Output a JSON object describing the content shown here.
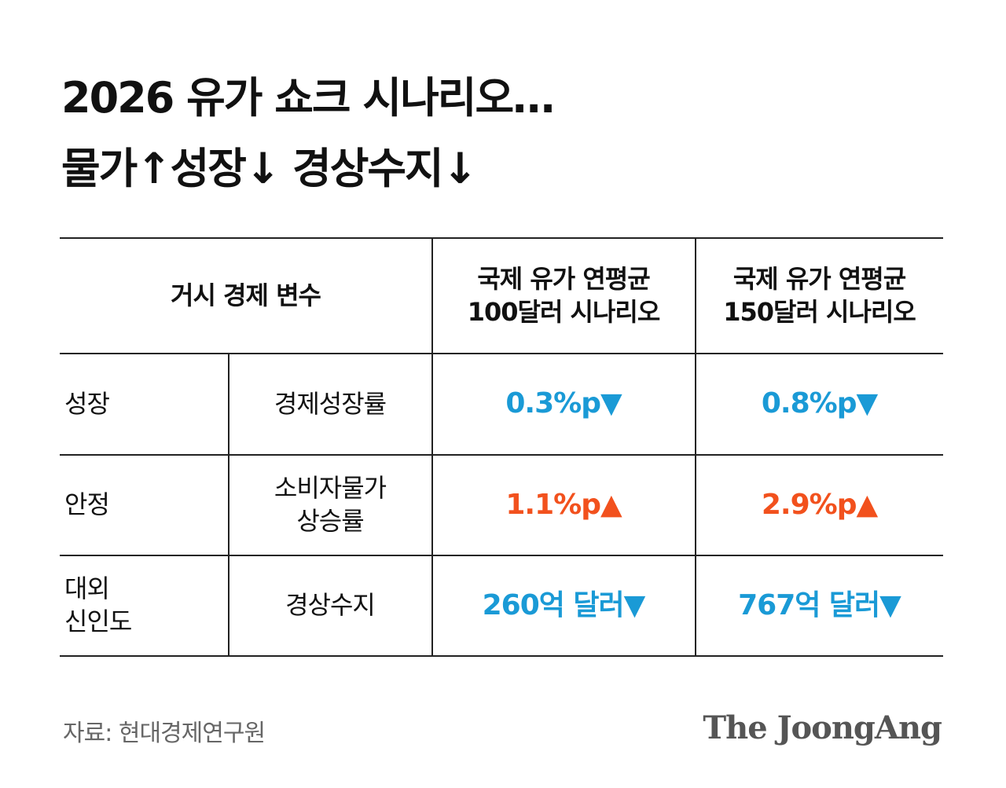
{
  "title": [
    "2026 유가 쇼크 시나리오…",
    "물가↑성장↓ 경상수지↓"
  ],
  "table": {
    "header": [
      "거시 경제 변수",
      [
        "국제 유가 연평균",
        "100달러 시나리오"
      ],
      [
        "국제 유가 연평균",
        "150달러 시나리오"
      ]
    ],
    "rows": [
      [
        "성장",
        "경제성장률",
        "0.3%p▼",
        "0.8%p▼"
      ],
      [
        "안정",
        [
          "소비자물가",
          "상승률"
        ],
        "1.1%p▲",
        "2.9%p▲"
      ],
      [
        [
          "대외",
          "신인도"
        ],
        "경상수지",
        "260억 달러▼",
        "767억 달러▼"
      ]
    ]
  },
  "footer": {
    "source": "자료: 현대경제연구원",
    "logo": "The JoongAng"
  }
}
